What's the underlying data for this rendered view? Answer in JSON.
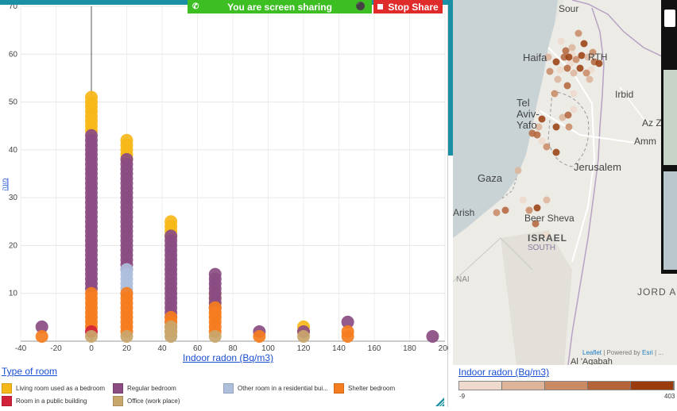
{
  "chart": {
    "xlabel": "Indoor radon (Bq/m3)",
    "ylabel": "מונה",
    "x_ticks": [
      "-40",
      "-20",
      "0",
      "20",
      "40",
      "60",
      "80",
      "100",
      "120",
      "140",
      "160",
      "180",
      "200"
    ],
    "y_ticks": [
      "10",
      "20",
      "30",
      "40",
      "50",
      "60",
      "70"
    ]
  },
  "chart_data": {
    "type": "scatter",
    "xlabel": "Indoor radon (Bq/m3)",
    "ylabel": "מונה",
    "xlim": [
      -40,
      200
    ],
    "ylim": [
      0,
      70
    ],
    "legend_position": "bottom",
    "series": [
      {
        "name": "Living room used as a bedroom",
        "color": "#f6b718",
        "x": [
          0,
          20,
          45,
          70,
          120
        ],
        "y": [
          [
            44,
            51
          ],
          [
            38,
            42
          ],
          [
            22,
            25
          ],
          [
            5,
            10
          ],
          [
            2,
            3
          ]
        ]
      },
      {
        "name": "Regular bedroom",
        "color": "#8a4c82",
        "x": [
          -28,
          0,
          20,
          45,
          70,
          95,
          120,
          145,
          193
        ],
        "y": [
          [
            3,
            3
          ],
          [
            11,
            43
          ],
          [
            15,
            38
          ],
          [
            4,
            22
          ],
          [
            7,
            14
          ],
          [
            2,
            2
          ],
          [
            2,
            2
          ],
          [
            4,
            4
          ],
          [
            1,
            1
          ]
        ]
      },
      {
        "name": "Other room in a residential bui...",
        "color": "#aebfdc",
        "x": [
          20,
          45
        ],
        "y": [
          [
            10,
            15
          ],
          [
            1,
            4
          ]
        ]
      },
      {
        "name": "Shelter bedroom",
        "color": "#f57d1f",
        "x": [
          -28,
          0,
          20,
          45,
          70,
          95,
          145
        ],
        "y": [
          [
            1,
            1
          ],
          [
            3,
            10
          ],
          [
            2,
            10
          ],
          [
            2,
            5
          ],
          [
            2,
            7
          ],
          [
            1,
            1
          ],
          [
            1,
            2
          ]
        ]
      },
      {
        "name": "Room in a public building",
        "color": "#d2223a",
        "x": [
          0
        ],
        "y": [
          [
            2,
            2
          ]
        ]
      },
      {
        "name": "Office (work place)",
        "color": "#c9a66b",
        "x": [
          0,
          20,
          45,
          70,
          120
        ],
        "y": [
          [
            1,
            1
          ],
          [
            1,
            1
          ],
          [
            1,
            3
          ],
          [
            1,
            1
          ],
          [
            1,
            1
          ]
        ]
      }
    ]
  },
  "legend": {
    "title": "Type of room",
    "items": [
      {
        "label": "Living room used as a bedroom",
        "color": "#f6b718"
      },
      {
        "label": "Regular bedroom",
        "color": "#8a4c82"
      },
      {
        "label": "Other room in a residential bui...",
        "color": "#aebfdc"
      },
      {
        "label": "Shelter bedroom",
        "color": "#f57d1f"
      },
      {
        "label": "Room in a public building",
        "color": "#d2223a"
      },
      {
        "label": "Office (work place)",
        "color": "#c9a66b"
      }
    ]
  },
  "share": {
    "banner_text": "You are screen sharing",
    "stop_label": "Stop Share"
  },
  "toolbar": {
    "tools": [
      "move-icon",
      "eye-icon",
      "ruler-icon",
      "chart-icon",
      "brush-icon",
      "camera-icon"
    ]
  },
  "map": {
    "places": {
      "sour": "Sour",
      "haifa": "Haifa",
      "rth": "RTH",
      "irbid": "Irbid",
      "tel_aviv": "Tel\nAviv-\nYafo",
      "az": "Az Z",
      "amm": "Amm",
      "jerusalem": "Jerusalem",
      "gaza": "Gaza",
      "arish": "Arish",
      "beer_sheva": "Beer Sheva",
      "israel": "ISRAEL",
      "south": "SOUTH",
      "nai": "NAI",
      "jord": "JORD A",
      "aqabah": "Al 'Aqabah"
    },
    "attribution_leaflet": "Leaflet",
    "attribution_rest": " | Powered by ",
    "attribution_esri": "Esri",
    "attribution_tail": " | ..."
  },
  "map_legend": {
    "title": "Indoor radon (Bq/m3)",
    "min": "-9",
    "max": "403",
    "ramp": [
      "#efd9cc",
      "#ddb49a",
      "#c98a64",
      "#b46438",
      "#9a3c0c"
    ]
  }
}
